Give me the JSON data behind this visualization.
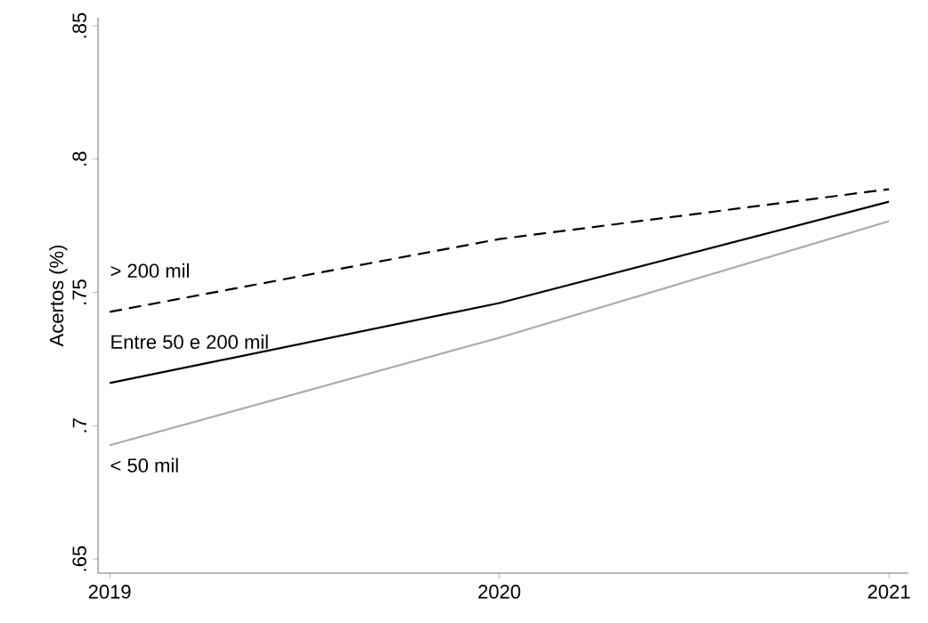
{
  "chart_data": {
    "type": "line",
    "ylabel": "Acertos (%)",
    "x": [
      2019,
      2020,
      2021
    ],
    "series": [
      {
        "name": "> 200 mil",
        "color": "#000000",
        "line_style": "dashed",
        "values": [
          0.7427,
          0.77,
          0.7887
        ]
      },
      {
        "name": "Entre 50 e 200 mil",
        "color": "#000000",
        "line_style": "solid",
        "values": [
          0.716,
          0.746,
          0.784
        ]
      },
      {
        "name": "< 50 mil",
        "color": "#aaaaaa",
        "line_style": "solid",
        "values": [
          0.6927,
          0.733,
          0.7767
        ]
      }
    ],
    "xlim": [
      2018.97,
      2021.05
    ],
    "ylim": [
      0.6447,
      0.853
    ],
    "xticks": [
      2019,
      2020,
      2021
    ],
    "yticks": [
      {
        "value": 0.65,
        "label": ".65"
      },
      {
        "value": 0.7,
        "label": ".7"
      },
      {
        "value": 0.75,
        "label": ".75"
      },
      {
        "value": 0.8,
        "label": ".8"
      },
      {
        "value": 0.85,
        "label": ".85"
      }
    ],
    "grid": false,
    "marker": "none"
  }
}
